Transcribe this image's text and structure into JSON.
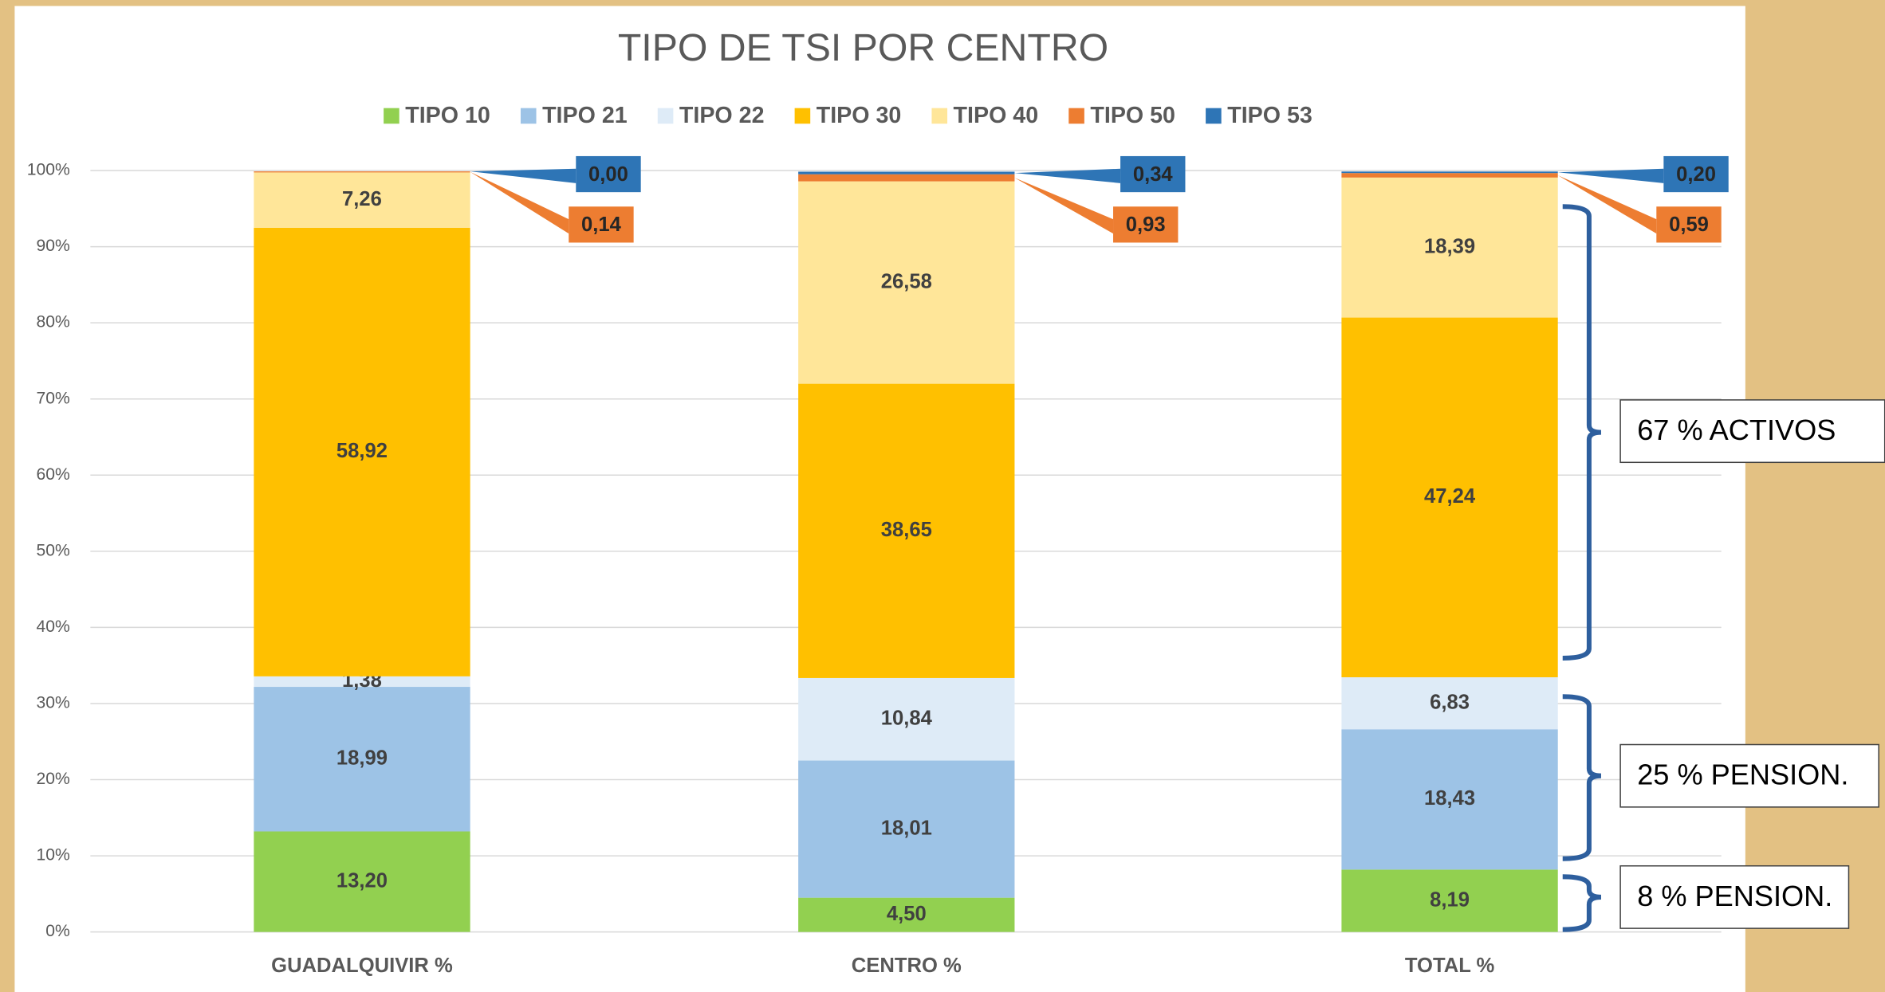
{
  "chart_data": {
    "type": "stacked_bar",
    "title": "TIPO DE TSI POR CENTRO",
    "categories": [
      "GUADALQUIVIR %",
      "CENTRO %",
      "TOTAL %"
    ],
    "series": [
      {
        "name": "TIPO 10",
        "color": "#92d050",
        "values": [
          13.2,
          4.5,
          8.19
        ],
        "value_labels": [
          "13,20",
          "4,50",
          "8,19"
        ]
      },
      {
        "name": "TIPO 21",
        "color": "#9dc3e6",
        "values": [
          18.99,
          18.01,
          18.43
        ],
        "value_labels": [
          "18,99",
          "18,01",
          "18,43"
        ]
      },
      {
        "name": "TIPO 22",
        "color": "#deebf7",
        "values": [
          1.38,
          10.84,
          6.83
        ],
        "value_labels": [
          "1,38",
          "10,84",
          "6,83"
        ]
      },
      {
        "name": "TIPO 30",
        "color": "#ffc000",
        "values": [
          58.92,
          38.65,
          47.24
        ],
        "value_labels": [
          "58,92",
          "38,65",
          "47,24"
        ]
      },
      {
        "name": "TIPO 40",
        "color": "#ffe699",
        "values": [
          7.26,
          26.58,
          18.39
        ],
        "value_labels": [
          "7,26",
          "26,58",
          "18,39"
        ]
      },
      {
        "name": "TIPO 50",
        "color": "#ed7d31",
        "values": [
          0.14,
          0.93,
          0.59
        ],
        "value_labels": [
          "0,14",
          "0,93",
          "0,59"
        ]
      },
      {
        "name": "TIPO 53",
        "color": "#2e75b6",
        "values": [
          0.0,
          0.34,
          0.2
        ],
        "value_labels": [
          "0,00",
          "0,34",
          "0,20"
        ]
      }
    ],
    "ylim": [
      0,
      100
    ],
    "yticks": [
      {
        "value": 0,
        "label": "0%"
      },
      {
        "value": 10,
        "label": "10%"
      },
      {
        "value": 20,
        "label": "20%"
      },
      {
        "value": 30,
        "label": "30%"
      },
      {
        "value": 40,
        "label": "40%"
      },
      {
        "value": 50,
        "label": "50%"
      },
      {
        "value": 60,
        "label": "60%"
      },
      {
        "value": 70,
        "label": "70%"
      },
      {
        "value": 80,
        "label": "80%"
      },
      {
        "value": 90,
        "label": "90%"
      },
      {
        "value": 100,
        "label": "100%"
      }
    ],
    "grid": true,
    "legend": "top",
    "annotations": [
      "67 % ACTIVOS",
      "25 % PENSION.",
      "8 % PENSION."
    ]
  }
}
